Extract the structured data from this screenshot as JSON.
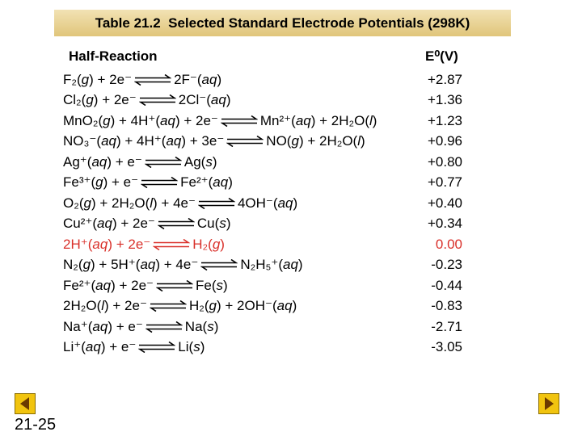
{
  "header": {
    "title": "Table 21.2  Selected Standard Electrode Potentials (298K)"
  },
  "table": {
    "columns": [
      "Half-Reaction",
      "E⁰(V)"
    ],
    "rows": [
      {
        "left": "F₂(g) + 2e⁻",
        "right": "2F⁻(aq)",
        "potential": "+2.87"
      },
      {
        "left": "Cl₂(g) + 2e⁻",
        "right": "2Cl⁻(aq)",
        "potential": "+1.36"
      },
      {
        "left": "MnO₂(g) + 4H⁺(aq) + 2e⁻",
        "right": "Mn²⁺(aq) + 2H₂O(l)",
        "potential": "+1.23"
      },
      {
        "left": "NO₃⁻(aq) + 4H⁺(aq) + 3e⁻",
        "right": "NO(g) + 2H₂O(l)",
        "potential": "+0.96"
      },
      {
        "left": "Ag⁺(aq) + e⁻",
        "right": "Ag(s)",
        "potential": "+0.80"
      },
      {
        "left": "Fe³⁺(g) + e⁻",
        "right": "Fe²⁺(aq)",
        "potential": "+0.77"
      },
      {
        "left": "O₂(g) + 2H₂O(l) + 4e⁻",
        "right": "4OH⁻(aq)",
        "potential": "+0.40"
      },
      {
        "left": "Cu²⁺(aq) + 2e⁻",
        "right": "Cu(s)",
        "potential": "+0.34"
      },
      {
        "left": "2H⁺(aq) + 2e⁻",
        "right": "H₂(g)",
        "potential": "0.00",
        "color": "#d9302a"
      },
      {
        "left": "N₂(g) + 5H⁺(aq) + 4e⁻",
        "right": "N₂H₅⁺(aq)",
        "potential": "-0.23"
      },
      {
        "left": "Fe²⁺(aq) + 2e⁻",
        "right": "Fe(s)",
        "potential": "-0.44"
      },
      {
        "left": "2H₂O(l) + 2e⁻",
        "right": "H₂(g) + 2OH⁻(aq)",
        "potential": "-0.83"
      },
      {
        "left": "Na⁺(aq) + e⁻",
        "right": "Na(s)",
        "potential": "-2.71"
      },
      {
        "left": "Li⁺(aq) + e⁻",
        "right": "Li(s)",
        "potential": "-3.05"
      }
    ]
  },
  "footer": {
    "slide_number": "21-25"
  }
}
